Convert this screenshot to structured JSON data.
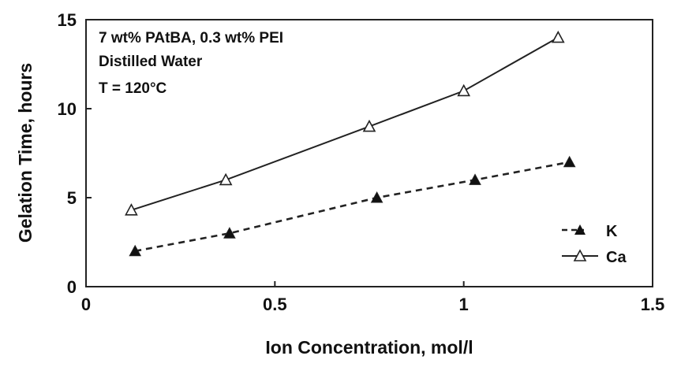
{
  "chart_data": {
    "type": "line",
    "xlabel": "Ion Concentration, mol/l",
    "ylabel": "Gelation Time, hours",
    "xlim": [
      0,
      1.5
    ],
    "ylim": [
      0,
      15
    ],
    "x_ticks": [
      "0",
      "0.5",
      "1",
      "1.5"
    ],
    "y_ticks": [
      "0",
      "5",
      "10",
      "15"
    ],
    "x_tick_values": [
      0,
      0.5,
      1,
      1.5
    ],
    "y_tick_values": [
      0,
      5,
      10,
      15
    ],
    "grid": false,
    "legend_position": "bottom-right",
    "annotations": [
      "7 wt% PAtBA, 0.3 wt% PEI",
      "Distilled Water",
      "T = 120°C"
    ],
    "series": [
      {
        "name": "K",
        "marker": "filled-triangle",
        "line": "dashed",
        "x": [
          0.13,
          0.38,
          0.77,
          1.03,
          1.28
        ],
        "y": [
          2,
          3,
          5,
          6,
          7
        ]
      },
      {
        "name": "Ca",
        "marker": "open-triangle",
        "line": "solid",
        "x": [
          0.12,
          0.37,
          0.75,
          1.0,
          1.25
        ],
        "y": [
          4.3,
          6,
          9,
          11,
          14
        ]
      }
    ]
  }
}
